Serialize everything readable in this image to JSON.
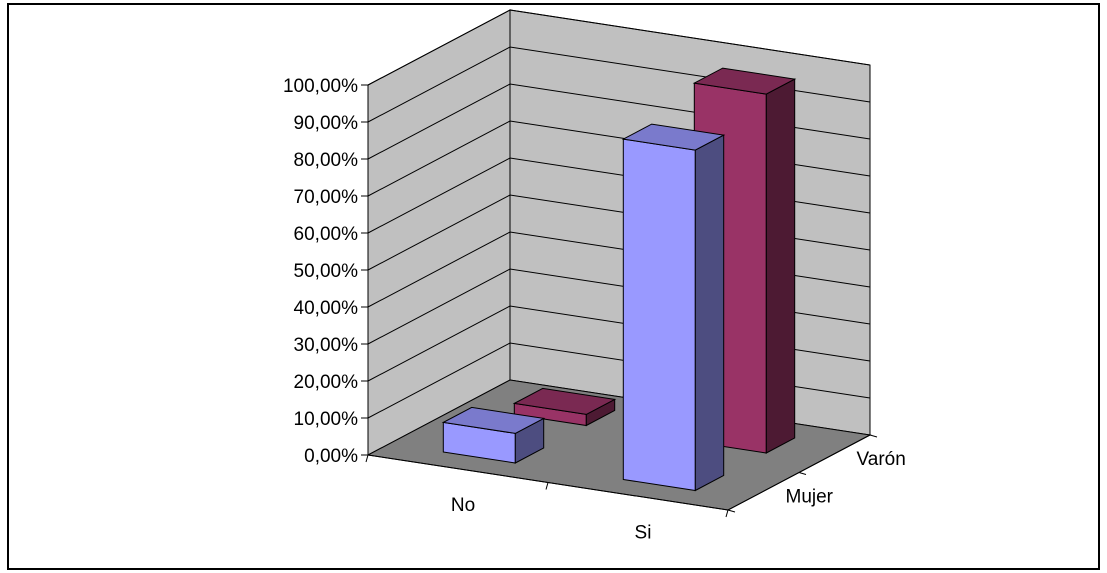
{
  "chart_data": {
    "type": "bar",
    "style": "3d-clustered-depth",
    "title": "",
    "categories": [
      "No",
      "Si"
    ],
    "series": [
      {
        "name": "Mujer",
        "values": [
          0.08,
          0.92
        ],
        "color": "#9999ff"
      },
      {
        "name": "Varón",
        "values": [
          0.03,
          0.97
        ],
        "color": "#993366"
      }
    ],
    "y_ticks": [
      "0,00%",
      "10,00%",
      "20,00%",
      "30,00%",
      "40,00%",
      "50,00%",
      "60,00%",
      "70,00%",
      "80,00%",
      "90,00%",
      "100,00%"
    ],
    "ylim": [
      0,
      1
    ],
    "grid": true,
    "colors": {
      "walls": "#c0c0c0",
      "floor": "#808080"
    }
  }
}
